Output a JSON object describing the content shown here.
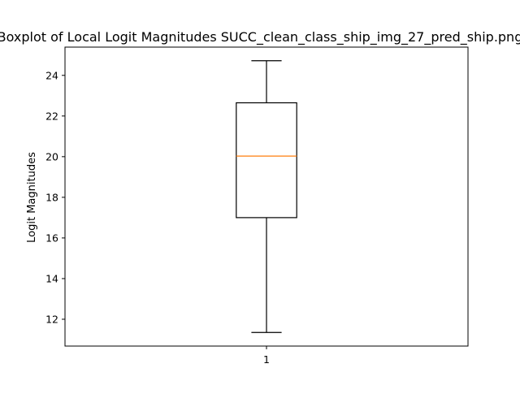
{
  "chart_data": {
    "type": "boxplot",
    "title": "Boxplot of Local Logit Magnitudes SUCC_clean_class_ship_img_27_pred_ship.png",
    "xlabel": "",
    "ylabel": "Logit Magnitudes",
    "categories": [
      "1"
    ],
    "boxes": [
      {
        "category": "1",
        "whisker_low": 11.35,
        "q1": 17.0,
        "median": 20.03,
        "q3": 22.65,
        "whisker_high": 24.72
      }
    ],
    "ylim": [
      10.68,
      25.39
    ],
    "yticks": [
      12,
      14,
      16,
      18,
      20,
      22,
      24
    ],
    "xlim": [
      0.5,
      1.5
    ],
    "grid": false,
    "colors": {
      "box": "#000000",
      "median": "#ff7f0e",
      "axes": "#000000"
    }
  }
}
